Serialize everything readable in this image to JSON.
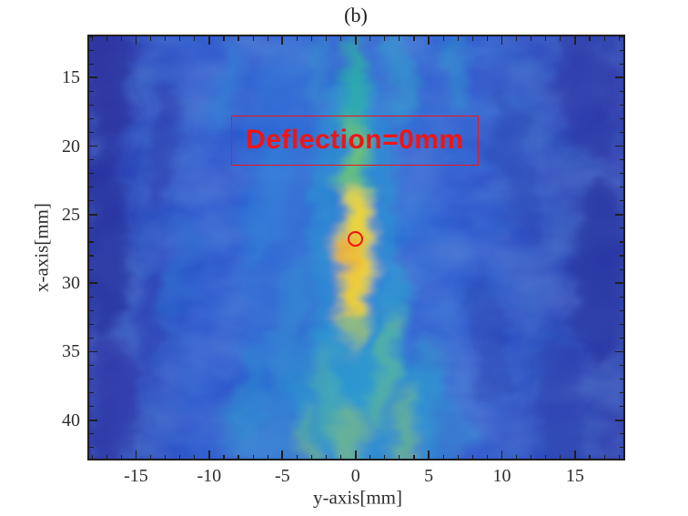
{
  "figure": {
    "title": "(b)"
  },
  "chart_data": {
    "type": "heatmap",
    "title": "(b)",
    "xlabel": "y-axis[mm]",
    "ylabel": "x-axis[mm]",
    "x_range": [
      -18.2,
      18.3
    ],
    "y_range": [
      12,
      42.8
    ],
    "y_direction": "down",
    "x_ticks": [
      -15,
      -10,
      -5,
      0,
      5,
      10,
      15
    ],
    "y_ticks": [
      15,
      20,
      25,
      30,
      35,
      40
    ],
    "minor_tick_step_mm": 1,
    "grid": false,
    "legend": "none",
    "colormap": "parula",
    "annotation": {
      "text": "Deflection=0mm",
      "color": "#f11414",
      "box": true,
      "x_span_mm": [
        -8.5,
        8.4
      ],
      "y_span_mm": [
        17.8,
        21.4
      ]
    },
    "marker": {
      "shape": "open-circle",
      "color": "#ee1111",
      "y_axis_mm": 0,
      "x_axis_mm": 26.8
    },
    "focal_spot": {
      "y_axis_mm": 0,
      "x_axis_mm": 27.5,
      "description": "bright yellow-orange focal spot of vertical beam at y=0"
    },
    "texture": {
      "base_stops": [
        {
          "off": 0,
          "c": "#2c34a2"
        },
        {
          "off": 7,
          "c": "#2b44b6"
        },
        {
          "off": 20,
          "c": "#2b55cc"
        },
        {
          "off": 45,
          "c": "#2e63d3"
        },
        {
          "off": 58,
          "c": "#2e66d4"
        },
        {
          "off": 72,
          "c": "#2b55cc"
        },
        {
          "off": 90,
          "c": "#2b43b4"
        },
        {
          "off": 100,
          "c": "#2b36a6"
        }
      ],
      "blobs": [
        {
          "h": -16.8,
          "v": 15,
          "rh": 1.6,
          "rv": 5,
          "rot": 0,
          "c": "#2b309e",
          "o": 0.75
        },
        {
          "h": -17,
          "v": 27,
          "rh": 1.6,
          "rv": 7,
          "rot": 0,
          "c": "#2a339f",
          "o": 0.75
        },
        {
          "h": -16.5,
          "v": 39,
          "rh": 1.6,
          "rv": 5,
          "rot": 0,
          "c": "#2c35a5",
          "o": 0.7
        },
        {
          "h": -13,
          "v": 20,
          "rh": 1.1,
          "rv": 5,
          "rot": 8,
          "c": "#2c3dae",
          "o": 0.6
        },
        {
          "h": -14,
          "v": 33,
          "rh": 1.0,
          "rv": 4,
          "rot": 6,
          "c": "#2c3dae",
          "o": 0.55
        },
        {
          "h": 15.8,
          "v": 16,
          "rh": 2,
          "rv": 5,
          "rot": -10,
          "c": "#2b38a6",
          "o": 0.65
        },
        {
          "h": 16.8,
          "v": 29,
          "rh": 2,
          "rv": 7,
          "rot": 0,
          "c": "#2a35a2",
          "o": 0.75
        },
        {
          "h": 14,
          "v": 39,
          "rh": 1.6,
          "rv": 5,
          "rot": -8,
          "c": "#2c3fae",
          "o": 0.6
        },
        {
          "h": 11,
          "v": 22,
          "rh": 1.2,
          "rv": 6,
          "rot": -12,
          "c": "#2c45b4",
          "o": 0.5
        },
        {
          "h": 9,
          "v": 34,
          "rh": 1.2,
          "rv": 5,
          "rot": -10,
          "c": "#2c42b0",
          "o": 0.5
        },
        {
          "h": -9,
          "v": 16,
          "rh": 0.8,
          "rv": 3.5,
          "rot": 15,
          "c": "#2f86d8",
          "o": 0.5
        },
        {
          "h": -6,
          "v": 24,
          "rh": 1.0,
          "rv": 5,
          "rot": 12,
          "c": "#2f8ed8",
          "o": 0.5
        },
        {
          "h": -4.5,
          "v": 33,
          "rh": 0.9,
          "rv": 5,
          "rot": 10,
          "c": "#2da3cf",
          "o": 0.5
        },
        {
          "h": -7.5,
          "v": 38.5,
          "rh": 1.0,
          "rv": 4,
          "rot": 14,
          "c": "#2d9ed0",
          "o": 0.45
        },
        {
          "h": -12,
          "v": 29,
          "rh": 0.8,
          "rv": 4,
          "rot": 10,
          "c": "#2b6fd0",
          "o": 0.5
        },
        {
          "h": -2.5,
          "v": 15,
          "rh": 0.7,
          "rv": 3,
          "rot": 5,
          "c": "#2d9ccd",
          "o": 0.4
        },
        {
          "h": 3,
          "v": 15,
          "rh": 0.8,
          "rv": 3.5,
          "rot": -5,
          "c": "#2fa8c8",
          "o": 0.5
        },
        {
          "h": 7,
          "v": 14.5,
          "rh": 0.9,
          "rv": 3,
          "rot": -8,
          "c": "#2f9ed0",
          "o": 0.45
        },
        {
          "h": 2.8,
          "v": 33,
          "rh": 0.8,
          "rv": 4,
          "rot": 5,
          "c": "#2da6c9",
          "o": 0.5
        },
        {
          "h": 5,
          "v": 38,
          "rh": 0.9,
          "rv": 4.5,
          "rot": 6,
          "c": "#2ba3cd",
          "o": 0.45
        },
        {
          "h": -5,
          "v": 27,
          "rh": 3,
          "rv": 14,
          "rot": 0,
          "c": "#2e74d6",
          "o": 0.35
        },
        {
          "h": 0,
          "v": 41,
          "rh": 8,
          "rv": 5,
          "rot": 0,
          "c": "#2aa3cf",
          "o": 0.3
        },
        {
          "h": 0,
          "v": 27,
          "rh": 3,
          "rv": 13,
          "rot": 0,
          "c": "#25a7d0",
          "o": 0.45
        },
        {
          "h": 0,
          "v": 17.3,
          "rh": 0.9,
          "rv": 5.5,
          "rot": 0,
          "c": "#2eb79f",
          "o": 0.7
        },
        {
          "h": 0,
          "v": 22.5,
          "rh": 0.9,
          "rv": 4,
          "rot": 0,
          "c": "#54c089",
          "o": 0.75
        },
        {
          "h": 0,
          "v": 20,
          "rh": 0.6,
          "rv": 2.5,
          "rot": 0,
          "c": "#8cc75f",
          "o": 0.5
        },
        {
          "h": 0,
          "v": 27.5,
          "rh": 1.05,
          "rv": 5,
          "rot": 0,
          "c": "#f2d737",
          "o": 0.95
        },
        {
          "h": -0.3,
          "v": 29.5,
          "rh": 0.7,
          "rv": 3,
          "rot": 0,
          "c": "#f0a23a",
          "o": 0.8
        },
        {
          "h": -0.2,
          "v": 31.8,
          "rh": 0.9,
          "rv": 3.5,
          "rot": 0,
          "c": "#ecd53c",
          "o": 0.8
        },
        {
          "h": 2,
          "v": 36.5,
          "rh": 0.8,
          "rv": 4.5,
          "rot": 10,
          "c": "#7ec47e",
          "o": 0.7
        },
        {
          "h": 3.3,
          "v": 40.5,
          "rh": 0.7,
          "rv": 3,
          "rot": 8,
          "c": "#9ccb60",
          "o": 0.65
        },
        {
          "h": -1.8,
          "v": 38.5,
          "rh": 0.7,
          "rv": 4,
          "rot": -8,
          "c": "#6cc28a",
          "o": 0.55
        },
        {
          "h": -3.2,
          "v": 41.5,
          "rh": 0.8,
          "rv": 3,
          "rot": -6,
          "c": "#8cc76e",
          "o": 0.5
        },
        {
          "h": -0.3,
          "v": 41.5,
          "rh": 1.0,
          "rv": 3,
          "rot": 0,
          "c": "#b3d052",
          "o": 0.65
        },
        {
          "h": 0,
          "v": 38,
          "rh": 4.5,
          "rv": 6,
          "rot": 0,
          "c": "#28a5cc",
          "o": 0.35
        }
      ]
    }
  },
  "axis_style": {
    "tick_color": "#1f1f1f",
    "label_color": "#2e2e2e",
    "major_tick_len": 9,
    "minor_tick_len": 4.5
  }
}
